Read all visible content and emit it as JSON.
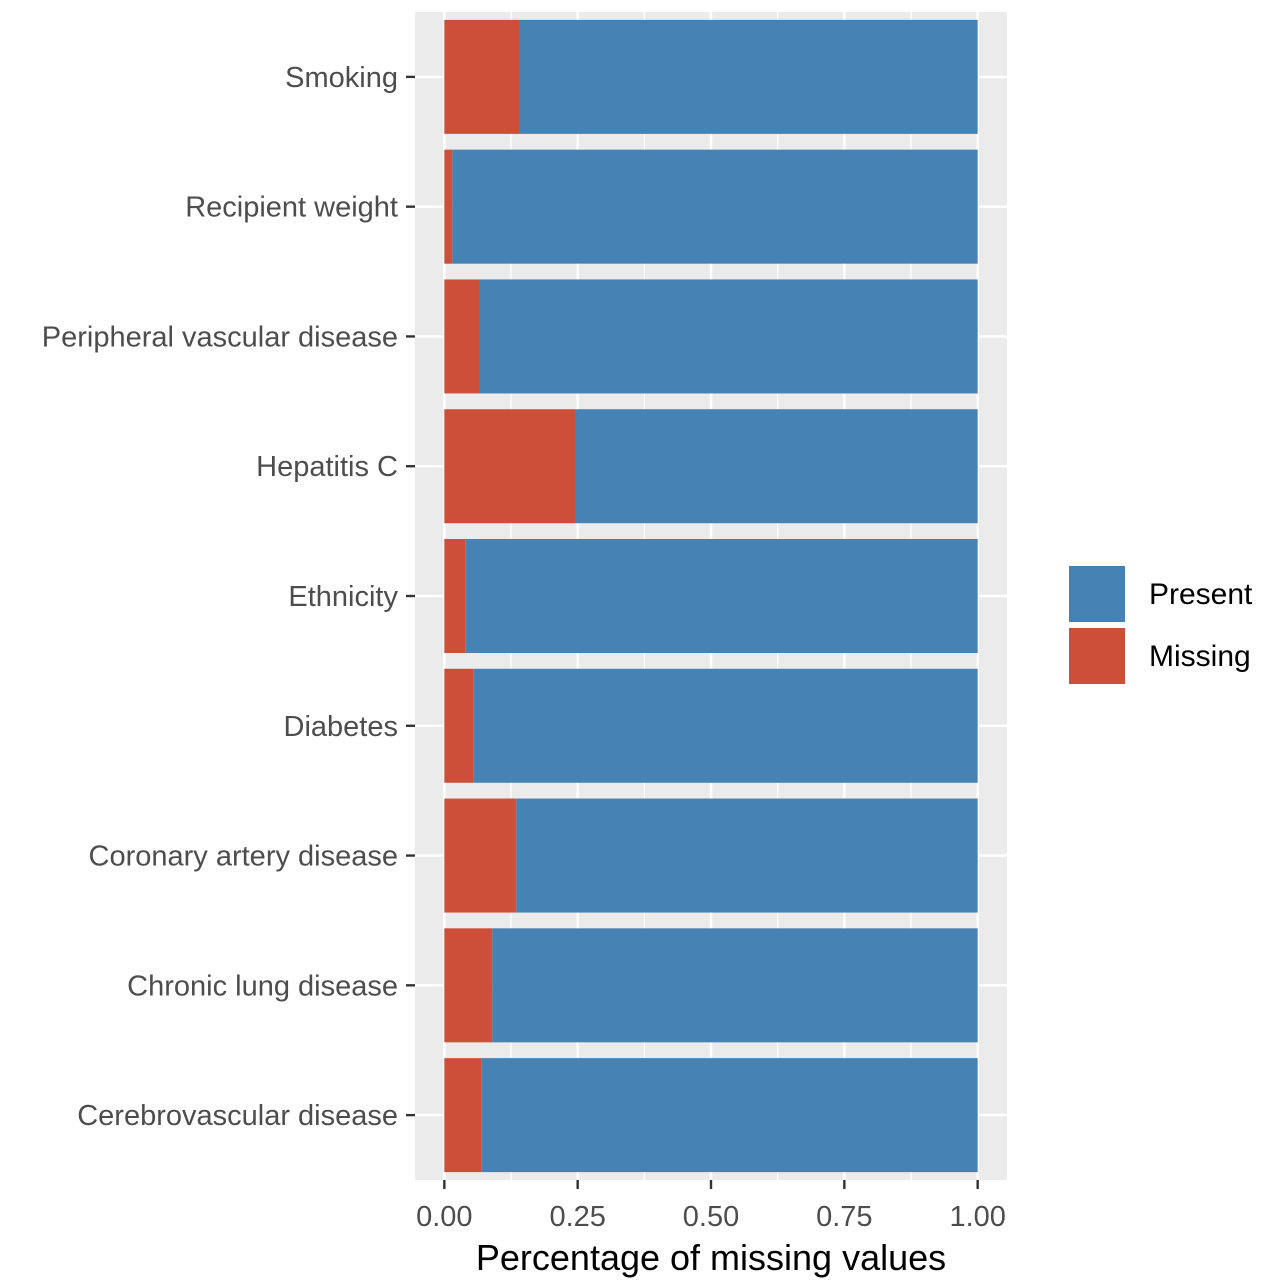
{
  "chart_data": {
    "type": "bar",
    "orientation": "horizontal",
    "stacked": true,
    "title": "",
    "xlabel": "Percentage of missing values",
    "ylabel": "",
    "xlim": [
      -0.055,
      1.055
    ],
    "xticks": [
      0.0,
      0.25,
      0.5,
      0.75,
      1.0
    ],
    "xtick_labels": [
      "0.00",
      "0.25",
      "0.50",
      "0.75",
      "1.00"
    ],
    "categories": [
      "Smoking",
      "Recipient weight",
      "Peripheral vascular disease",
      "Hepatitis C",
      "Ethnicity",
      "Diabetes",
      "Coronary artery disease",
      "Chronic lung disease",
      "Cerebrovascular disease"
    ],
    "series": [
      {
        "name": "Missing",
        "color": "#CD4F39",
        "values": [
          0.14,
          0.015,
          0.065,
          0.245,
          0.04,
          0.055,
          0.135,
          0.09,
          0.07
        ]
      },
      {
        "name": "Present",
        "color": "#4682B4",
        "values": [
          0.86,
          0.985,
          0.935,
          0.755,
          0.96,
          0.945,
          0.865,
          0.91,
          0.93
        ]
      }
    ],
    "legend": {
      "position": "right",
      "entries": [
        "Present",
        "Missing"
      ]
    },
    "grid": true,
    "panel_background": "#EBEBEB",
    "grid_color": "#FFFFFF"
  }
}
